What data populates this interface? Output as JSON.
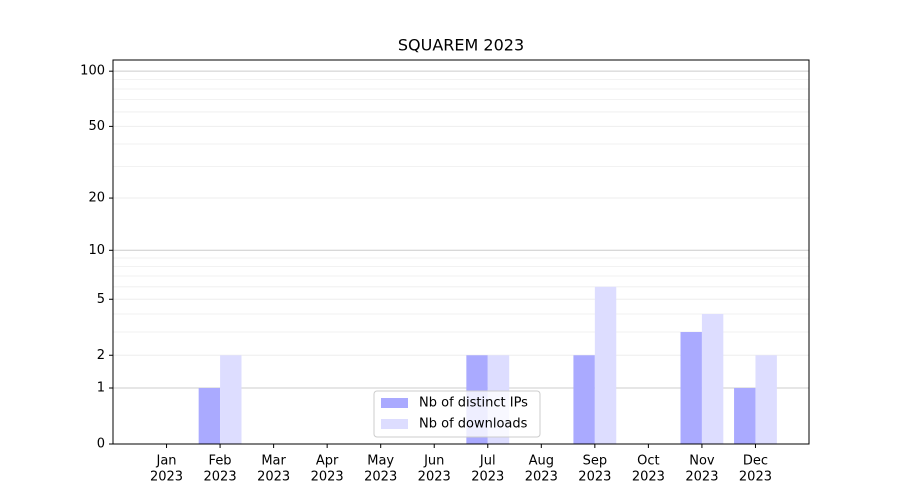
{
  "chart_data": {
    "type": "bar",
    "title": "SQUAREM 2023",
    "categories": [
      [
        "Jan",
        "2023"
      ],
      [
        "Feb",
        "2023"
      ],
      [
        "Mar",
        "2023"
      ],
      [
        "Apr",
        "2023"
      ],
      [
        "May",
        "2023"
      ],
      [
        "Jun",
        "2023"
      ],
      [
        "Jul",
        "2023"
      ],
      [
        "Aug",
        "2023"
      ],
      [
        "Sep",
        "2023"
      ],
      [
        "Oct",
        "2023"
      ],
      [
        "Nov",
        "2023"
      ],
      [
        "Dec",
        "2023"
      ]
    ],
    "series": [
      {
        "name": "Nb of distinct IPs",
        "color": "#aaaaff",
        "values": [
          0,
          1,
          0,
          0,
          0,
          0,
          2,
          0,
          2,
          0,
          3,
          1
        ]
      },
      {
        "name": "Nb of downloads",
        "color": "#ddddff",
        "values": [
          0,
          2,
          0,
          0,
          0,
          0,
          2,
          0,
          6,
          0,
          4,
          2
        ]
      }
    ],
    "yscale": "log1p",
    "ylim": [
      0,
      115
    ],
    "yticks": [
      0,
      1,
      2,
      5,
      10,
      20,
      50,
      100
    ],
    "yminorticks": [
      3,
      4,
      6,
      7,
      8,
      9,
      30,
      40,
      60,
      70,
      80,
      90
    ],
    "grid": true,
    "legend": "lower center"
  }
}
